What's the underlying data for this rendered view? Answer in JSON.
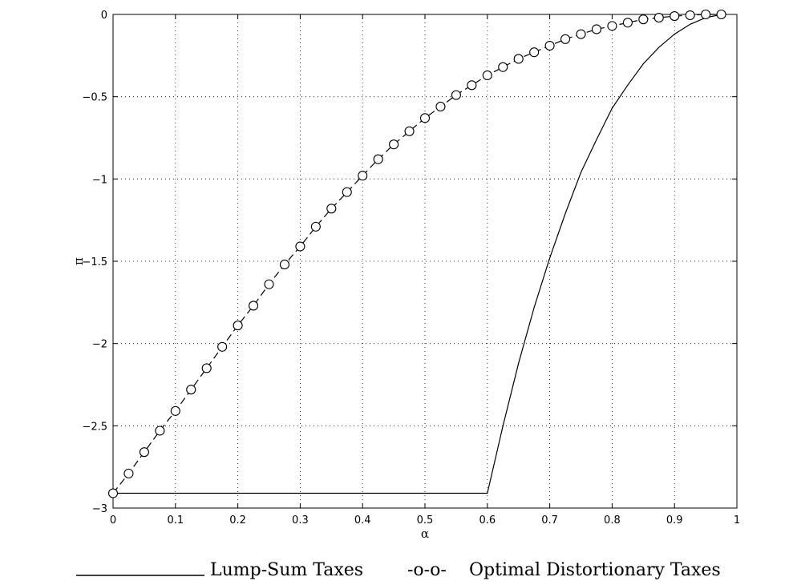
{
  "chart_data": {
    "type": "line",
    "xlabel": "α",
    "ylabel": "π",
    "xlim": [
      0,
      1
    ],
    "ylim": [
      -3,
      0
    ],
    "grid": true,
    "legend_placement": "bottom",
    "x_ticks": [
      0,
      0.1,
      0.2,
      0.3,
      0.4,
      0.5,
      0.6,
      0.7,
      0.8,
      0.9,
      1
    ],
    "x_tick_labels": [
      "0",
      "0.1",
      "0.2",
      "0.3",
      "0.4",
      "0.5",
      "0.6",
      "0.7",
      "0.8",
      "0.9",
      "1"
    ],
    "y_ticks": [
      0,
      -0.5,
      -1,
      -1.5,
      -2,
      -2.5,
      -3
    ],
    "y_tick_labels": [
      "0",
      "−0.5",
      "−1",
      "−1.5",
      "−2",
      "−2.5",
      "−3"
    ],
    "series": [
      {
        "name": "Lump-Sum Taxes",
        "legend_marker": "",
        "style": "solid",
        "color": "#000000",
        "x": [
          0,
          0.6,
          0.625,
          0.65,
          0.675,
          0.7,
          0.725,
          0.75,
          0.775,
          0.8,
          0.825,
          0.85,
          0.875,
          0.9,
          0.925,
          0.95,
          0.975
        ],
        "y": [
          -2.91,
          -2.91,
          -2.5,
          -2.12,
          -1.78,
          -1.48,
          -1.21,
          -0.96,
          -0.76,
          -0.57,
          -0.43,
          -0.3,
          -0.2,
          -0.12,
          -0.06,
          -0.02,
          0
        ]
      },
      {
        "name": "Optimal Distortionary Taxes",
        "legend_marker": "-o-o-",
        "style": "dashed-circle",
        "color": "#000000",
        "x": [
          0,
          0.025,
          0.05,
          0.075,
          0.1,
          0.125,
          0.15,
          0.175,
          0.2,
          0.225,
          0.25,
          0.275,
          0.3,
          0.325,
          0.35,
          0.375,
          0.4,
          0.425,
          0.45,
          0.475,
          0.5,
          0.525,
          0.55,
          0.575,
          0.6,
          0.625,
          0.65,
          0.675,
          0.7,
          0.725,
          0.75,
          0.775,
          0.8,
          0.825,
          0.85,
          0.875,
          0.9,
          0.925,
          0.95,
          0.975
        ],
        "y": [
          -2.91,
          -2.79,
          -2.66,
          -2.53,
          -2.41,
          -2.28,
          -2.15,
          -2.02,
          -1.89,
          -1.77,
          -1.64,
          -1.52,
          -1.41,
          -1.29,
          -1.18,
          -1.08,
          -0.98,
          -0.88,
          -0.79,
          -0.71,
          -0.63,
          -0.56,
          -0.49,
          -0.43,
          -0.37,
          -0.32,
          -0.27,
          -0.23,
          -0.19,
          -0.15,
          -0.12,
          -0.09,
          -0.07,
          -0.05,
          -0.03,
          -0.02,
          -0.01,
          -0.005,
          0,
          0
        ]
      }
    ]
  }
}
